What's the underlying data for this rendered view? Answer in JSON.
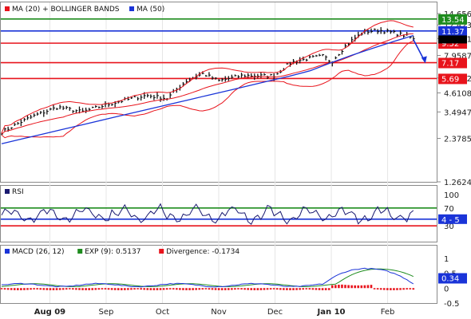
{
  "chart_data": [
    {
      "type": "line",
      "panel": "price",
      "legend": [
        {
          "label": "MA (20) + BOLLINGER BANDS",
          "color": "#e8141c"
        },
        {
          "label": "MA (50)",
          "color": "#1a34d8"
        }
      ],
      "price_ticks": [
        "14.6561",
        "12.4236",
        "10.1911",
        "7.9587",
        "5.7262",
        "4.6108",
        "3.4947",
        "2.3785",
        "1.2624"
      ],
      "price_tick_values": [
        14.6561,
        12.4236,
        10.1911,
        7.9587,
        5.7262,
        4.6108,
        3.4947,
        2.3785,
        1.2624
      ],
      "ylim": [
        1.2624,
        14.6561
      ],
      "levels": [
        {
          "label": "13.54",
          "value": 13.54,
          "color": "#1e8c1e"
        },
        {
          "label": "11.37",
          "value": 11.37,
          "color": "#1a34d8"
        },
        {
          "label": "9.52",
          "value": 9.52,
          "color": "#e8141c"
        },
        {
          "label": "7.17",
          "value": 7.17,
          "color": "#e8141c"
        },
        {
          "label": "5.69",
          "value": 5.69,
          "color": "#e8141c"
        }
      ],
      "last_close": 10.05
    },
    {
      "type": "line",
      "panel": "rsi",
      "legend": [
        {
          "label": "RSI",
          "color": "#1a1a70"
        }
      ],
      "ticks": [
        "100",
        "70",
        "50",
        "30"
      ],
      "tick_values": [
        100,
        70,
        50,
        30
      ],
      "ylim": [
        0,
        100
      ],
      "levels": [
        {
          "value": 70,
          "color": "#1e8c1e"
        },
        {
          "value": 45,
          "color": "#1a34d8"
        },
        {
          "value": 30,
          "color": "#e8141c"
        }
      ],
      "current_label": "4 - 5",
      "current": 45
    },
    {
      "type": "line",
      "panel": "macd",
      "legend": [
        {
          "label": "MACD (26, 12)",
          "color": "#1a34d8"
        },
        {
          "label": "EXP (9): 0.5137",
          "color": "#1e8c1e"
        },
        {
          "label": "Divergence: -0.1734",
          "color": "#e8141c"
        }
      ],
      "ticks": [
        "1",
        "0.5",
        "0",
        "-0.5"
      ],
      "tick_values": [
        1,
        0.5,
        0,
        -0.5
      ],
      "ylim": [
        -0.5,
        1.1
      ],
      "current_label": "0.34",
      "current": 0.34
    }
  ],
  "x_axis": {
    "labels": [
      "Aug 09",
      "Sep",
      "Oct",
      "Nov",
      "Dec",
      "Jan 10",
      "Feb"
    ],
    "label_positions": [
      3.0,
      6.5,
      10.0,
      13.5,
      17.0,
      20.5,
      24.0
    ],
    "bold": [
      true,
      false,
      false,
      false,
      false,
      true,
      false
    ],
    "weeks": 27
  }
}
